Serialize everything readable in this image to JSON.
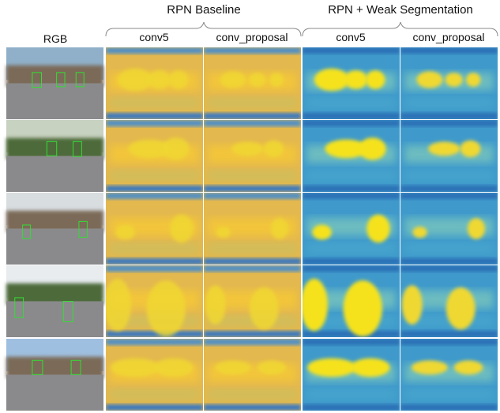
{
  "header": {
    "groups": [
      "RPN Baseline",
      "RPN + Weak Segmentation"
    ],
    "columns": [
      "RGB",
      "conv5",
      "conv_proposal",
      "conv5",
      "conv_proposal"
    ]
  }
}
